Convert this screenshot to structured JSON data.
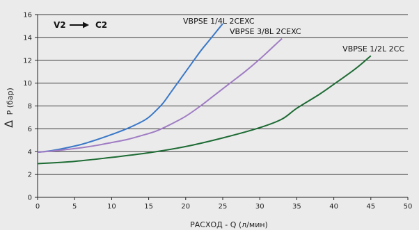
{
  "chart_data": {
    "type": "line",
    "title": "",
    "annotation": {
      "from": "V2",
      "to": "C2"
    },
    "xlabel": "РАСХОД - Q (л/мин)",
    "ylabel_symbol": "Δ",
    "ylabel": "P (бар)",
    "xlim": [
      0,
      50
    ],
    "ylim": [
      0,
      16
    ],
    "xticks": [
      0,
      5,
      10,
      15,
      20,
      25,
      30,
      35,
      40,
      45,
      50
    ],
    "yticks": [
      0,
      2,
      4,
      6,
      8,
      10,
      12,
      14,
      16
    ],
    "grid": "horizontal",
    "background": "#ebebeb",
    "series": [
      {
        "name": "VBPSE 1/4L 2CEXC",
        "color": "#3a78c8",
        "x": [
          0,
          2,
          4,
          6,
          8,
          10,
          12,
          14,
          15,
          16,
          17,
          18,
          19,
          20,
          21,
          22,
          23,
          24,
          25
        ],
        "y": [
          3.95,
          4.1,
          4.35,
          4.65,
          5.05,
          5.5,
          6.0,
          6.6,
          7.0,
          7.6,
          8.3,
          9.2,
          10.1,
          11.0,
          11.9,
          12.8,
          13.6,
          14.4,
          15.2
        ]
      },
      {
        "name": "VBPSE 3/8L 2CEXC",
        "color": "#a07cc4",
        "x": [
          0,
          2,
          4,
          6,
          8,
          10,
          12,
          14,
          16,
          18,
          20,
          22,
          24,
          26,
          28,
          30,
          32,
          33
        ],
        "y": [
          3.95,
          4.05,
          4.2,
          4.35,
          4.55,
          4.8,
          5.05,
          5.4,
          5.8,
          6.4,
          7.1,
          8.0,
          9.0,
          10.0,
          11.0,
          12.1,
          13.3,
          13.9
        ]
      },
      {
        "name": "VBPSE 1/2L 2CC",
        "color": "#1d6b34",
        "x": [
          0,
          5,
          10,
          15,
          20,
          25,
          30,
          33,
          35,
          38,
          40,
          43,
          45
        ],
        "y": [
          2.95,
          3.15,
          3.5,
          3.9,
          4.45,
          5.2,
          6.1,
          6.85,
          7.8,
          9.0,
          9.9,
          11.3,
          12.4
        ]
      }
    ]
  }
}
